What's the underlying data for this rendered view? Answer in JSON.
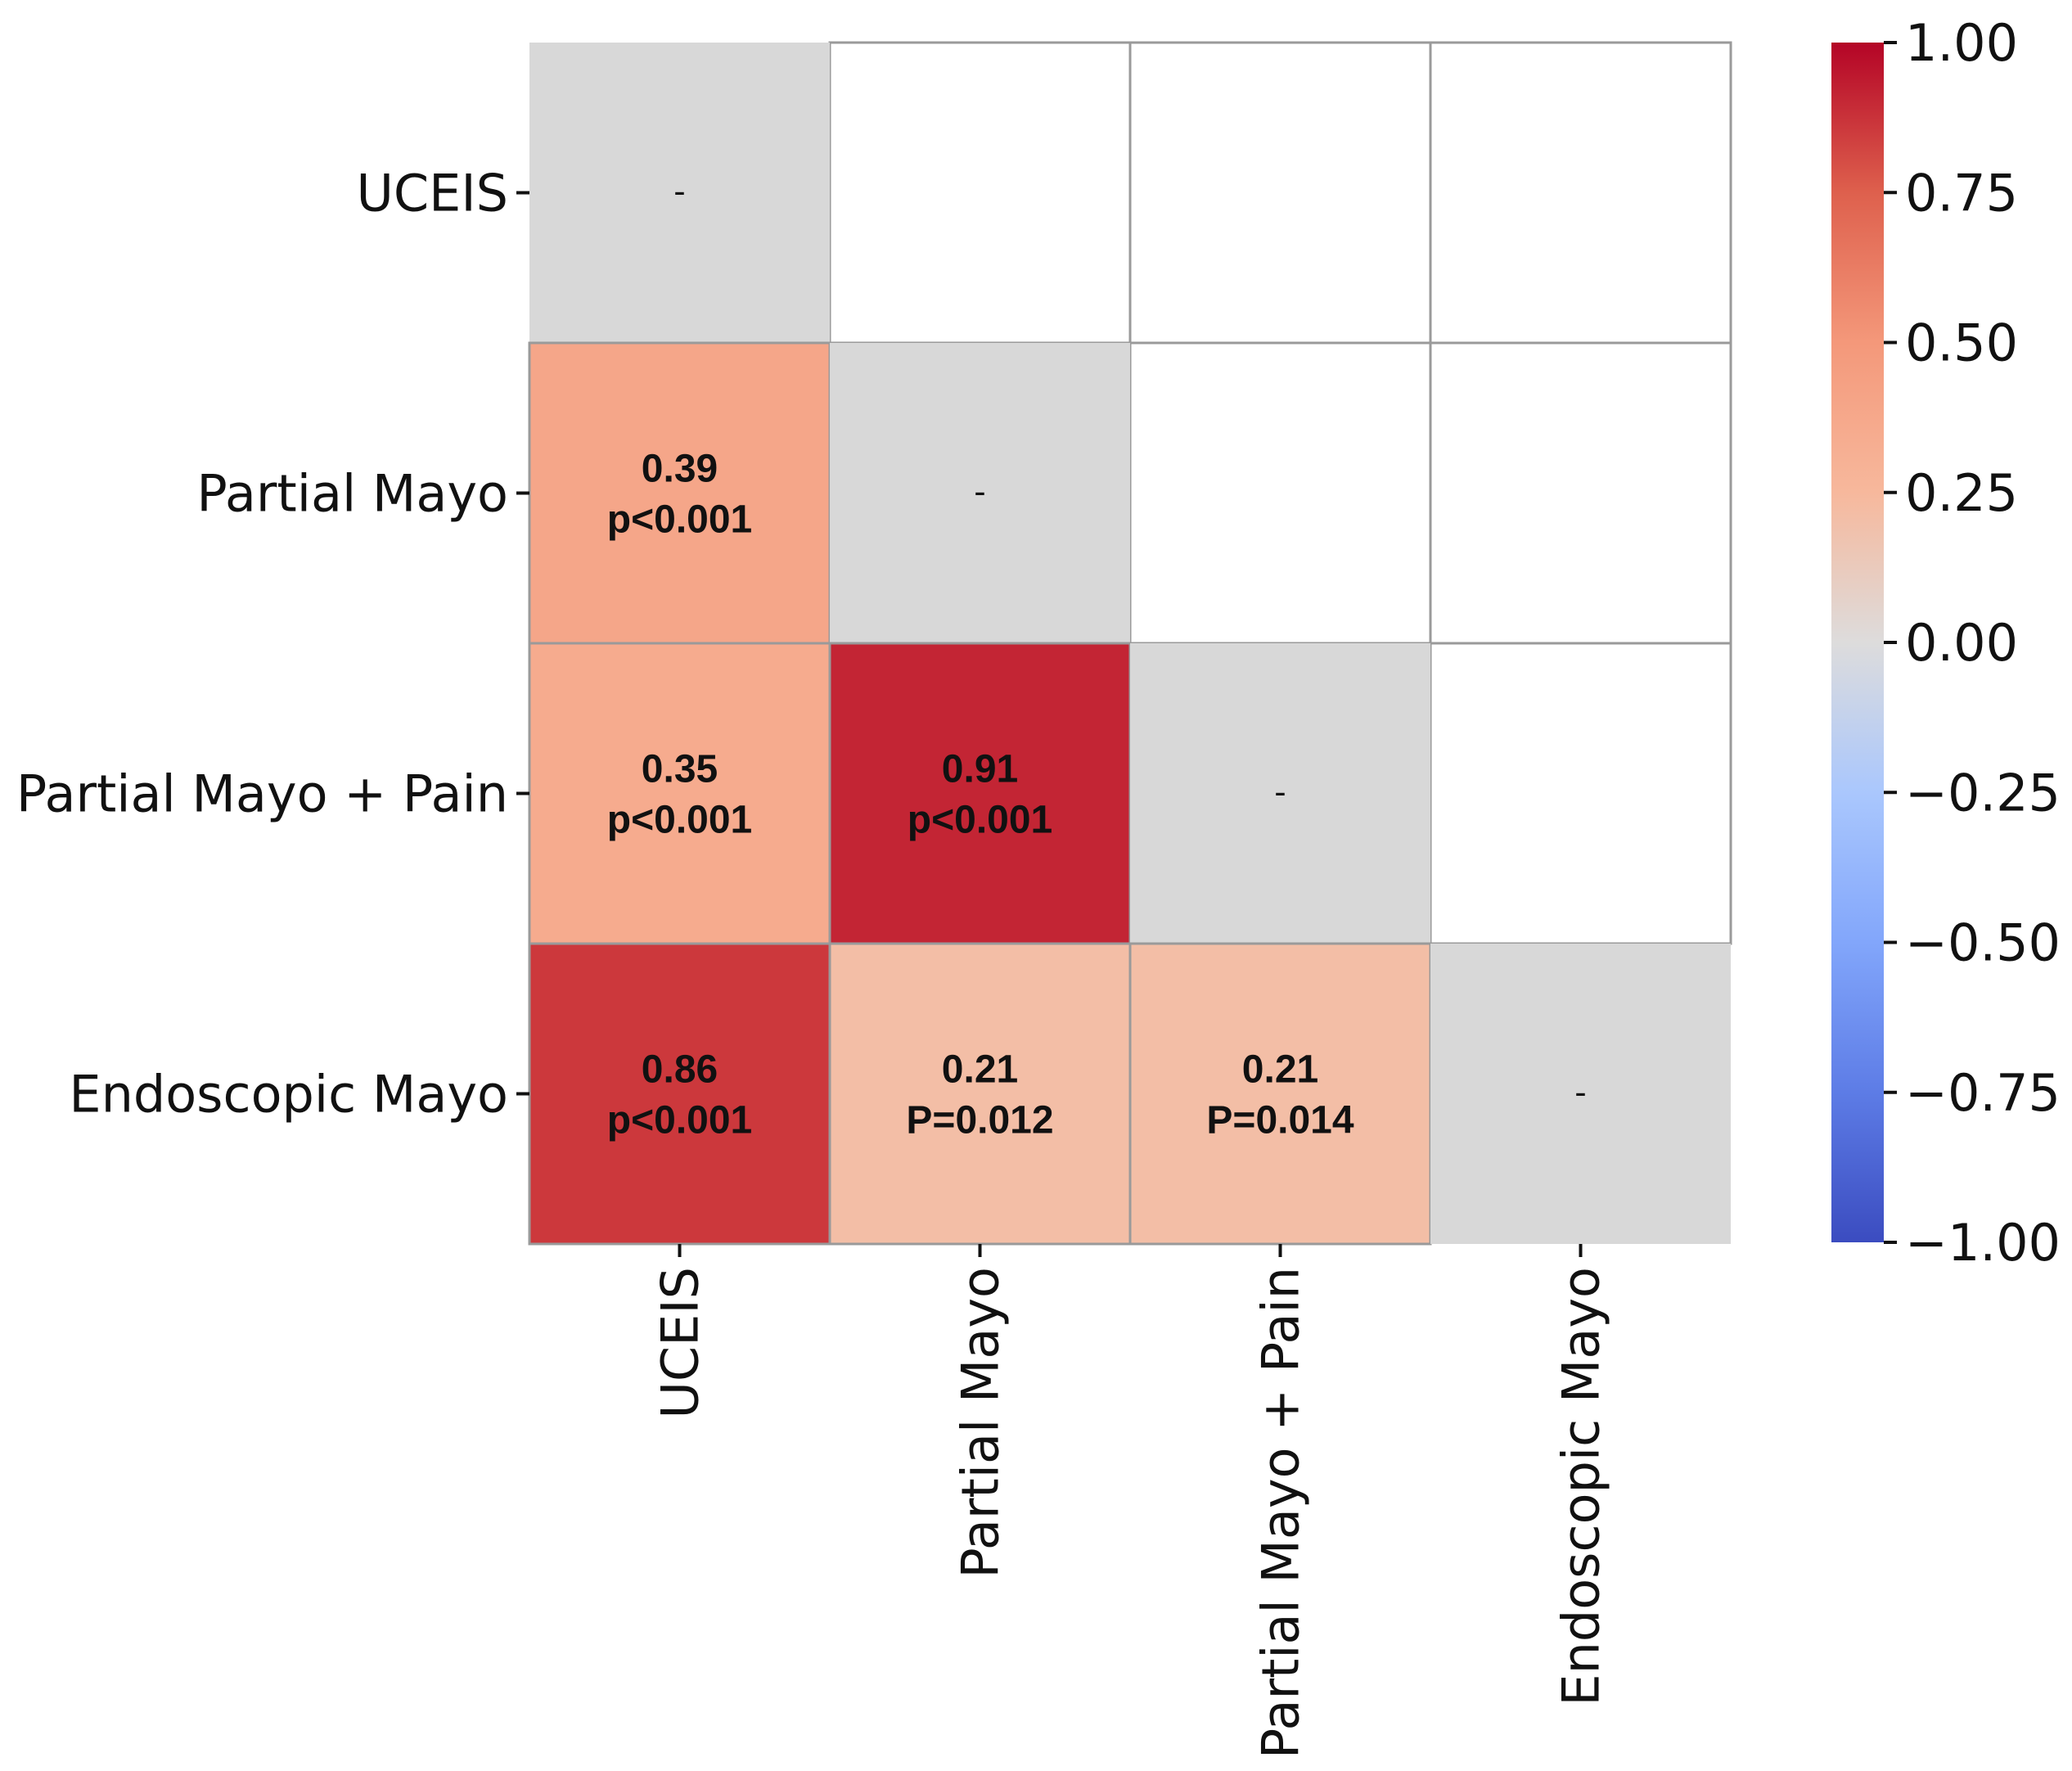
{
  "chart_data": {
    "type": "heatmap",
    "title": "",
    "xlabel": "",
    "ylabel": "",
    "rows": [
      "UCEIS",
      "Partial Mayo",
      "Partial Mayo + Pain",
      "Endoscopic Mayo"
    ],
    "columns": [
      "UCEIS",
      "Partial Mayo",
      "Partial Mayo + Pain",
      "Endoscopic Mayo"
    ],
    "cells": [
      {
        "row": 0,
        "col": 0,
        "value": 0,
        "diagonal": true,
        "label": "-"
      },
      {
        "row": 1,
        "col": 0,
        "value": 0.39,
        "value_label": "0.39",
        "p_label": "p<0.001"
      },
      {
        "row": 1,
        "col": 1,
        "value": 0,
        "diagonal": true,
        "label": "-"
      },
      {
        "row": 2,
        "col": 0,
        "value": 0.35,
        "value_label": "0.35",
        "p_label": "p<0.001"
      },
      {
        "row": 2,
        "col": 1,
        "value": 0.91,
        "value_label": "0.91",
        "p_label": "p<0.001"
      },
      {
        "row": 2,
        "col": 2,
        "value": 0,
        "diagonal": true,
        "label": "-"
      },
      {
        "row": 3,
        "col": 0,
        "value": 0.86,
        "value_label": "0.86",
        "p_label": "p<0.001"
      },
      {
        "row": 3,
        "col": 1,
        "value": 0.21,
        "value_label": "0.21",
        "p_label": "P=0.012"
      },
      {
        "row": 3,
        "col": 2,
        "value": 0.21,
        "value_label": "0.21",
        "p_label": "P=0.014"
      },
      {
        "row": 3,
        "col": 3,
        "value": 0,
        "diagonal": true,
        "label": "-"
      }
    ],
    "colorbar": {
      "colormap": "coolwarm",
      "range": [
        -1.0,
        1.0
      ],
      "ticks": [
        "1.00",
        "0.75",
        "0.50",
        "0.25",
        "0.00",
        "−0.25",
        "−0.50",
        "−0.75",
        "−1.00"
      ],
      "tick_values": [
        1.0,
        0.75,
        0.5,
        0.25,
        0.0,
        -0.25,
        -0.5,
        -0.75,
        -1.0
      ]
    },
    "colors": {
      "diagonal": "#d8d8d8",
      "empty": "#ffffff",
      "grid": "#9a9a9a"
    }
  }
}
